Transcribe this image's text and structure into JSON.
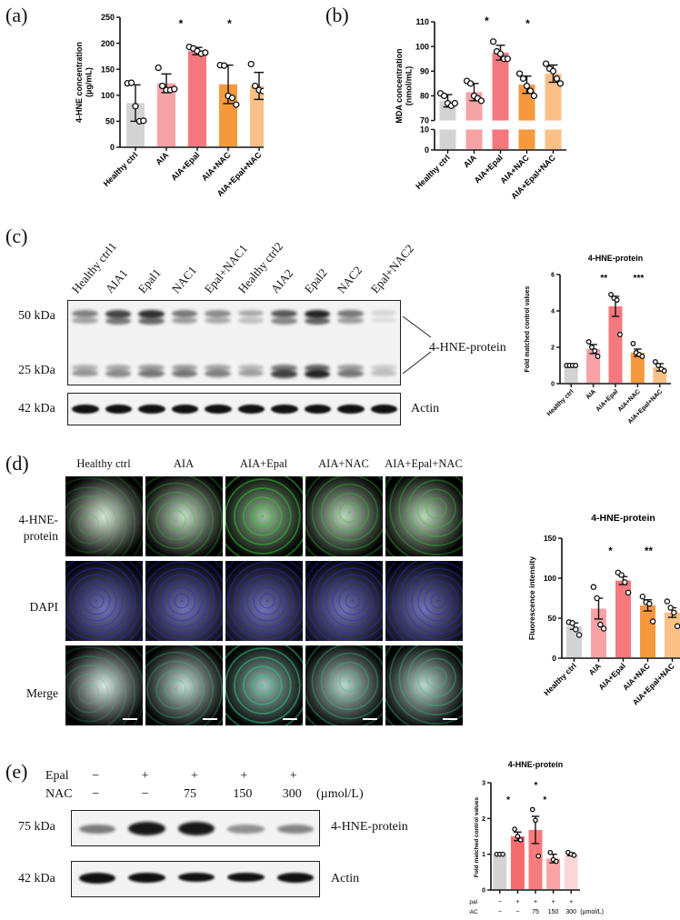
{
  "panels": {
    "a": {
      "label": "(a)"
    },
    "b": {
      "label": "(b)"
    },
    "c": {
      "label": "(c)"
    },
    "d": {
      "label": "(d)"
    },
    "e": {
      "label": "(e)"
    }
  },
  "colors": {
    "healthy": "#d3d3d3",
    "aia": "#f7a3a6",
    "aia_epal": "#f4787d",
    "aia_nac": "#f6993d",
    "aia_epal_nac": "#fbc086",
    "e_epal": "#f66b6e",
    "e_75": "#f77a7c",
    "e_150": "#f9a3a5",
    "e_300": "#fcd6d7"
  },
  "chart_data": [
    {
      "id": "a",
      "type": "bar",
      "title": "",
      "ylabel": "4-HNE concentration (µg/mL)",
      "xlabel": "",
      "ylim": [
        0,
        250
      ],
      "yticks": [
        0,
        50,
        100,
        150,
        200,
        250
      ],
      "categories": [
        "Healthy ctrl",
        "AIA",
        "AIA+Epal",
        "AIA+NAC",
        "AIA+Epal+NAC"
      ],
      "values": [
        85,
        123,
        185,
        121,
        118
      ],
      "error": [
        35,
        18,
        7,
        37,
        26
      ],
      "points": [
        [
          123,
          124,
          79,
          50,
          51
        ],
        [
          153,
          118,
          110,
          110,
          112
        ],
        [
          193,
          190,
          185,
          180,
          182
        ],
        [
          158,
          157,
          99,
          95,
          82
        ],
        [
          160,
          118,
          110,
          108,
          95
        ]
      ],
      "significance": [
        {
          "from": 1,
          "to": 2,
          "label": "*"
        },
        {
          "from": 2,
          "to": 4,
          "label": "*"
        }
      ],
      "grid": false
    },
    {
      "id": "b",
      "type": "bar",
      "title": "",
      "ylabel": "MDA concentration (nmol/mL)",
      "xlabel": "",
      "ylim": [
        0,
        110
      ],
      "axis_break": [
        10,
        70
      ],
      "yticks": [
        0,
        10,
        70,
        80,
        90,
        100,
        110
      ],
      "categories": [
        "Healthy ctrl",
        "AIA",
        "AIA+Epal",
        "AIA+NAC",
        "AIA+Epal+NAC"
      ],
      "values": [
        78,
        81.5,
        97.5,
        84.5,
        89
      ],
      "error": [
        2.5,
        3.5,
        3,
        3.5,
        3.5
      ],
      "points": [
        [
          81,
          80,
          77,
          76,
          77
        ],
        [
          86,
          85,
          80,
          79,
          78
        ],
        [
          102,
          98,
          97,
          95,
          95
        ],
        [
          89,
          87,
          84,
          82,
          80
        ],
        [
          93,
          91,
          90,
          87,
          85
        ]
      ],
      "significance": [
        {
          "from": 1,
          "to": 2,
          "label": "*"
        },
        {
          "from": 2,
          "to": 4,
          "label": "*"
        }
      ],
      "grid": false
    },
    {
      "id": "c",
      "type": "bar",
      "title": "4-HNE-protein",
      "ylabel": "Fold matched control values",
      "xlabel": "",
      "ylim": [
        0,
        6
      ],
      "yticks": [
        0,
        2,
        4,
        6
      ],
      "categories": [
        "Healthy ctrl",
        "AIA",
        "AIA+Epal",
        "AIA+NAC",
        "AIA+Epal+NAC"
      ],
      "values": [
        1.0,
        1.9,
        4.25,
        1.7,
        0.9
      ],
      "error": [
        0,
        0.25,
        0.55,
        0.2,
        0.2
      ],
      "points": [
        [
          1,
          1,
          1,
          1
        ],
        [
          2.3,
          2.0,
          1.8,
          1.5
        ],
        [
          4.9,
          4.7,
          4.6,
          2.7
        ],
        [
          2.2,
          1.7,
          1.6,
          1.5
        ],
        [
          1.2,
          1.0,
          0.8,
          0.7
        ]
      ],
      "significance": [
        {
          "from": 1,
          "to": 2,
          "label": "**"
        },
        {
          "from": 2,
          "to": 4,
          "label": "***"
        }
      ],
      "grid": false
    },
    {
      "id": "d",
      "type": "bar",
      "title": "4-HNE-protein",
      "ylabel": "Fluorescence intensity",
      "xlabel": "",
      "ylim": [
        0,
        150
      ],
      "yticks": [
        0,
        50,
        100,
        150
      ],
      "categories": [
        "Healthy ctrl",
        "AIA",
        "AIA+Epal",
        "AIA+NAC",
        "AIA+Epal+NAC"
      ],
      "values": [
        40,
        62,
        97,
        66,
        57
      ],
      "error": [
        4,
        13,
        5,
        7,
        6
      ],
      "points": [
        [
          45,
          44,
          36,
          29
        ],
        [
          89,
          75,
          42,
          37
        ],
        [
          107,
          104,
          95,
          82
        ],
        [
          77,
          70,
          68,
          46
        ],
        [
          71,
          63,
          57,
          40
        ]
      ],
      "significance": [
        {
          "from": 1,
          "to": 2,
          "label": "*"
        },
        {
          "from": 2,
          "to": 4,
          "label": "**"
        }
      ],
      "grid": false
    },
    {
      "id": "e",
      "type": "bar",
      "title": "4-HNE-protein",
      "ylabel": "Fold matched control values",
      "xlabel": "",
      "ylim": [
        0,
        3
      ],
      "yticks": [
        0,
        1,
        2,
        3
      ],
      "categories": [
        "Epal -/NAC -",
        "Epal +/NAC -",
        "Epal +/NAC 75",
        "Epal +/NAC 150",
        "Epal +/NAC 300"
      ],
      "row_labels": {
        "epal": [
          "−",
          "+",
          "+",
          "+",
          "+"
        ],
        "nac": [
          "−",
          "−",
          "75",
          "150",
          "300"
        ],
        "unit": "(µmol/L)"
      },
      "values": [
        1.0,
        1.5,
        1.68,
        0.88,
        1.0
      ],
      "error": [
        0,
        0.12,
        0.38,
        0.12,
        0.04
      ],
      "points": [
        [
          1,
          1,
          1
        ],
        [
          1.7,
          1.5,
          1.4
        ],
        [
          2.25,
          1.95,
          0.95
        ],
        [
          1.05,
          0.85,
          0.8
        ],
        [
          1.05,
          1.0,
          0.97
        ]
      ],
      "significance": [
        {
          "from": 0,
          "to": 1,
          "label": "*"
        },
        {
          "from": 1,
          "to": 3,
          "label": "*"
        },
        {
          "from": 1,
          "to": 4,
          "label": "*"
        }
      ],
      "grid": false
    }
  ],
  "wb_c": {
    "lanes": [
      "Healthy ctrl1",
      "AIA1",
      "Epal1",
      "NAC1",
      "Epal+NAC1",
      "Healthy ctrl2",
      "AIA2",
      "Epal2",
      "NAC2",
      "Epal+NAC2"
    ],
    "mw_50": "50 kDa",
    "mw_25": "25 kDa",
    "mw_42": "42 kDa",
    "target": "4-HNE-protein",
    "loading": "Actin"
  },
  "if_d": {
    "columns": [
      "Healthy ctrl",
      "AIA",
      "AIA+Epal",
      "AIA+NAC",
      "AIA+Epal+NAC"
    ],
    "rows": [
      "4-HNE-\nprotein",
      "DAPI",
      "Merge"
    ],
    "row1a": "4-HNE-",
    "row1b": "protein"
  },
  "wb_e": {
    "epal_label": "Epal",
    "nac_label": "NAC",
    "epal": [
      "−",
      "+",
      "+",
      "+",
      "+"
    ],
    "nac": [
      "−",
      "−",
      "75",
      "150",
      "300"
    ],
    "unit": "(µmol/L)",
    "mw_75": "75 kDa",
    "mw_42": "42 kDa",
    "target": "4-HNE-protein",
    "loading": "Actin"
  }
}
